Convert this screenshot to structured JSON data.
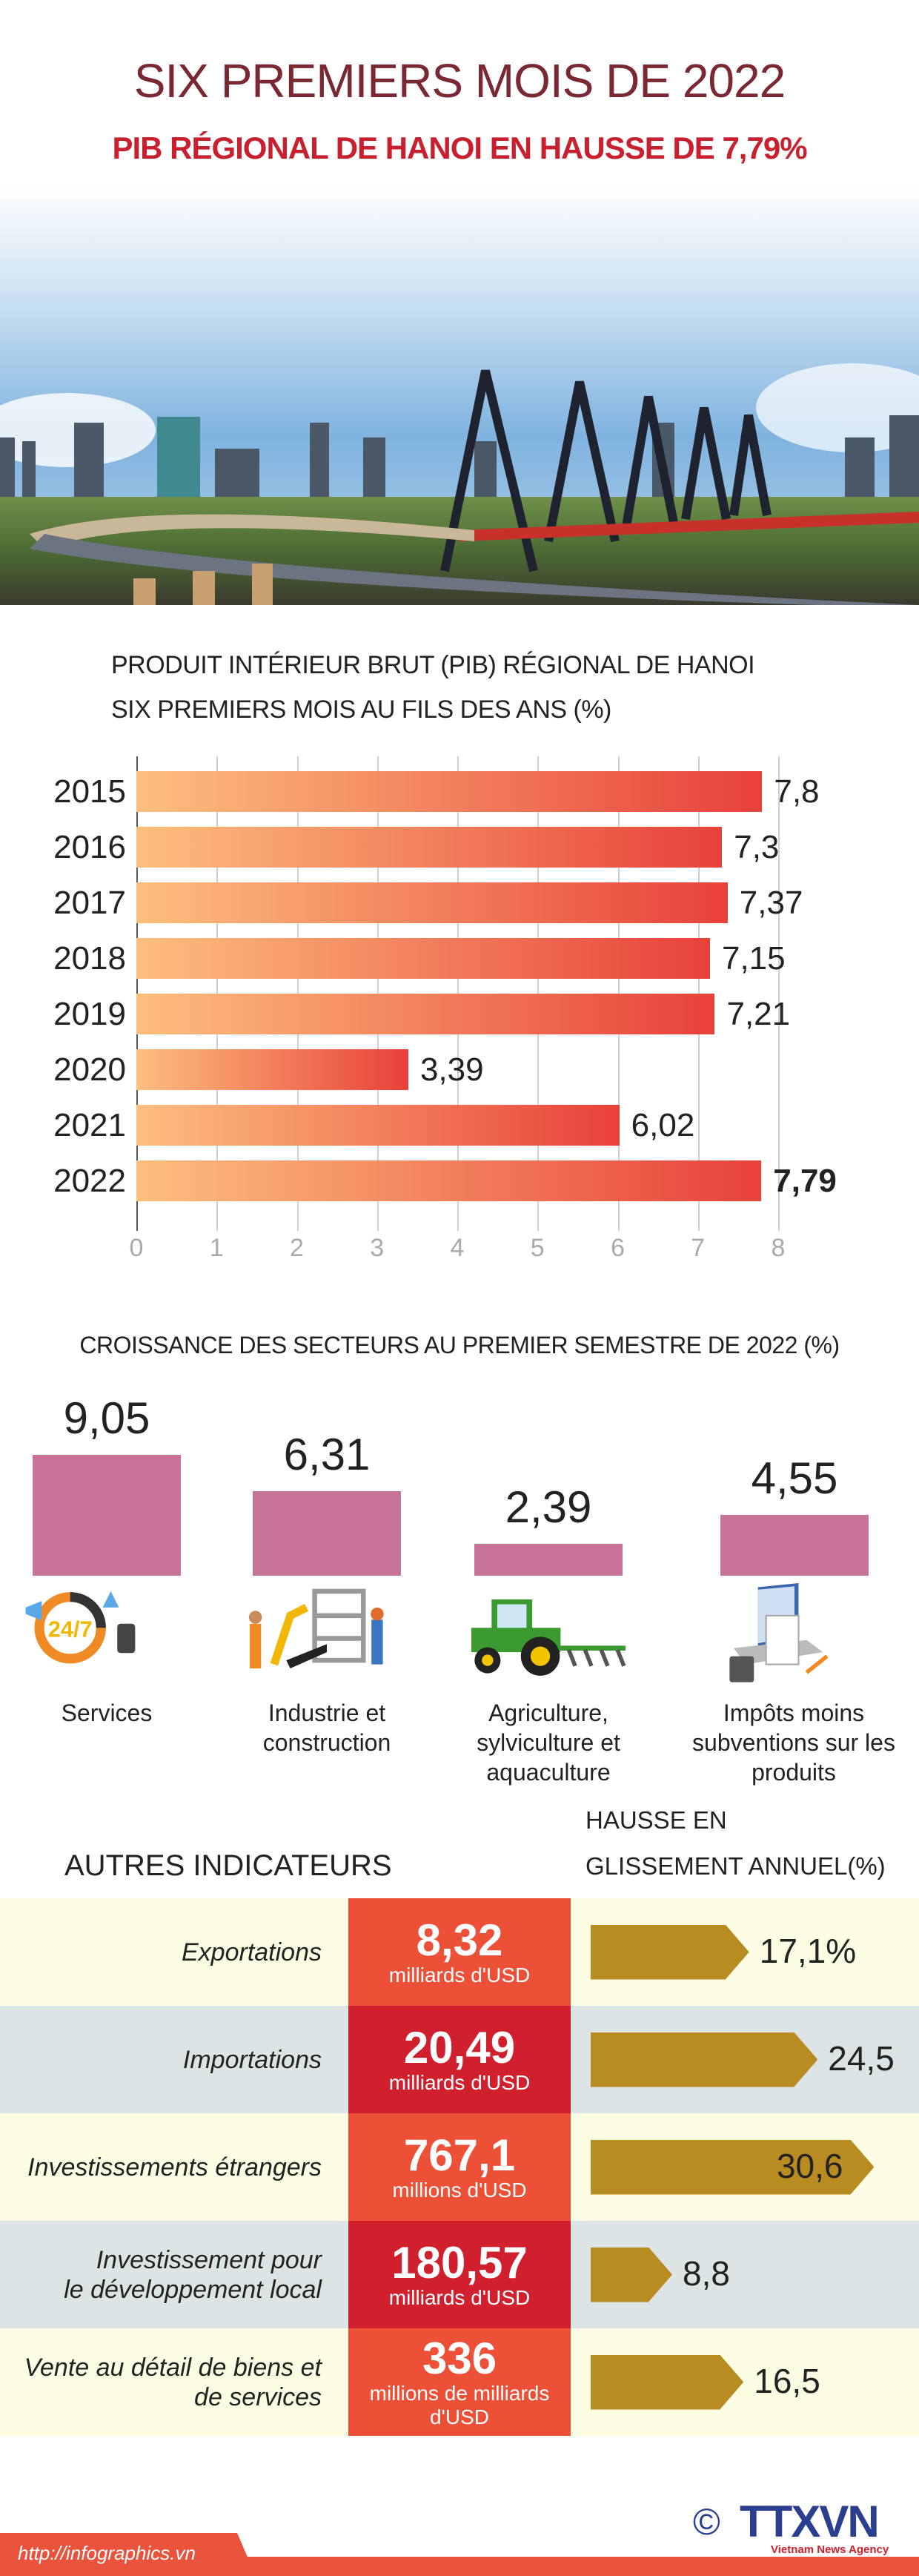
{
  "header": {
    "title": "SIX PREMIERS MOIS DE 2022",
    "subtitle": "PIB RÉGIONAL DE HANOI EN HAUSSE DE 7,79%"
  },
  "colors": {
    "title": "#7a2832",
    "subtitle": "#c9202f",
    "bar_gradient_start": "#fdbf7f",
    "bar_gradient_end": "#e8413a",
    "sector_bar": "#c77297",
    "row_yellow": "#fdfde3",
    "row_gray": "#dde4e6",
    "cell_orange": "#ec5138",
    "cell_red": "#d0202d",
    "arrow": "#b88c20",
    "footer": "#e9523b",
    "logo_blue": "#2b3f8f"
  },
  "chart_data": [
    {
      "type": "bar",
      "orientation": "horizontal",
      "title": "PRODUIT INTÉRIEUR BRUT (PIB) RÉGIONAL DE HANOI",
      "subtitle": "SIX PREMIERS MOIS AU FILS DES ANS (%)",
      "categories": [
        "2015",
        "2016",
        "2017",
        "2018",
        "2019",
        "2020",
        "2021",
        "2022"
      ],
      "values": [
        7.8,
        7.3,
        7.37,
        7.15,
        7.21,
        3.39,
        6.02,
        7.79
      ],
      "value_labels": [
        "7,8",
        "7,3",
        "7,37",
        "7,15",
        "7,21",
        "3,39",
        "6,02",
        "7,79"
      ],
      "highlight": "2022",
      "xlim": [
        0,
        8
      ],
      "xticks": [
        "0",
        "1",
        "2",
        "3",
        "4",
        "5",
        "6",
        "7",
        "8"
      ],
      "grid": true
    },
    {
      "type": "bar",
      "orientation": "vertical",
      "title": "CROISSANCE DES SECTEURS AU PREMIER SEMESTRE  DE 2022 (%)",
      "categories": [
        {
          "lines": [
            "Services"
          ],
          "icon": "services-24-7-icon"
        },
        {
          "lines": [
            "Industrie et",
            "construction"
          ],
          "icon": "industry-construction-icon"
        },
        {
          "lines": [
            "Agriculture,",
            "sylviculture et",
            "aquaculture"
          ],
          "icon": "tractor-icon"
        },
        {
          "lines": [
            "Impôts moins",
            "subventions sur les",
            "produits"
          ],
          "icon": "tax-laptop-icon"
        }
      ],
      "values": [
        9.05,
        6.31,
        2.39,
        4.55
      ],
      "value_labels": [
        "9,05",
        "6,31",
        "2,39",
        "4,55"
      ]
    }
  ],
  "indicators": {
    "title": "AUTRES INDICATEURS",
    "growth_header": [
      "HAUSSE EN",
      "GLISSEMENT ANNUEL(%)"
    ],
    "rows": [
      {
        "label": [
          "Exportations"
        ],
        "value": "8,32",
        "unit": [
          "milliards d'USD"
        ],
        "growth": 17.1,
        "growth_label": "17,1%"
      },
      {
        "label": [
          "Importations"
        ],
        "value": "20,49",
        "unit": [
          "milliards d'USD"
        ],
        "growth": 24.5,
        "growth_label": "24,5"
      },
      {
        "label": [
          "Investissements étrangers"
        ],
        "value": "767,1",
        "unit": [
          "millions d'USD"
        ],
        "growth": 30.6,
        "growth_label": "30,6"
      },
      {
        "label": [
          "Investissement pour",
          "le développement local"
        ],
        "value": "180,57",
        "unit": [
          "milliards d'USD"
        ],
        "growth": 8.8,
        "growth_label": "8,8"
      },
      {
        "label": [
          "Vente au détail de biens et",
          "de services"
        ],
        "value": "336",
        "unit": [
          "millions de milliards",
          "d'USD"
        ],
        "growth": 16.5,
        "growth_label": "16,5"
      }
    ]
  },
  "footer": {
    "url": "http://infographics.vn",
    "copyright": "©",
    "logo": "TTXVN",
    "logo_tagline": "Vietnam News Agency"
  }
}
